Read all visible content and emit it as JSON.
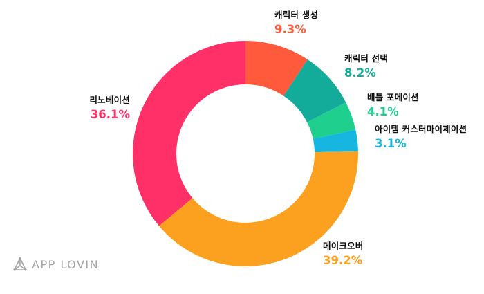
{
  "chart_data": {
    "type": "pie",
    "donut": true,
    "slices": [
      {
        "label": "캐릭터 생성",
        "value": 9.3,
        "pct_label": "9.3%",
        "color": "#ff5a3c"
      },
      {
        "label": "캐릭터 선택",
        "value": 8.2,
        "pct_label": "8.2%",
        "color": "#13ab9a"
      },
      {
        "label": "배틀 포메이션",
        "value": 4.1,
        "pct_label": "4.1%",
        "color": "#1fcf8e"
      },
      {
        "label": "아이템 커스터마이제이션",
        "value": 3.1,
        "pct_label": "3.1%",
        "color": "#16b6e0"
      },
      {
        "label": "메이크오버",
        "value": 39.2,
        "pct_label": "39.2%",
        "color": "#fca11f"
      },
      {
        "label": "리노베이션",
        "value": 36.1,
        "pct_label": "36.1%",
        "color": "#ff2f68"
      }
    ],
    "start": "top",
    "direction": "clockwise"
  },
  "brand": {
    "name": "APPLOVIN",
    "text": "APP LOVIN",
    "color": "#a3a3a3"
  }
}
